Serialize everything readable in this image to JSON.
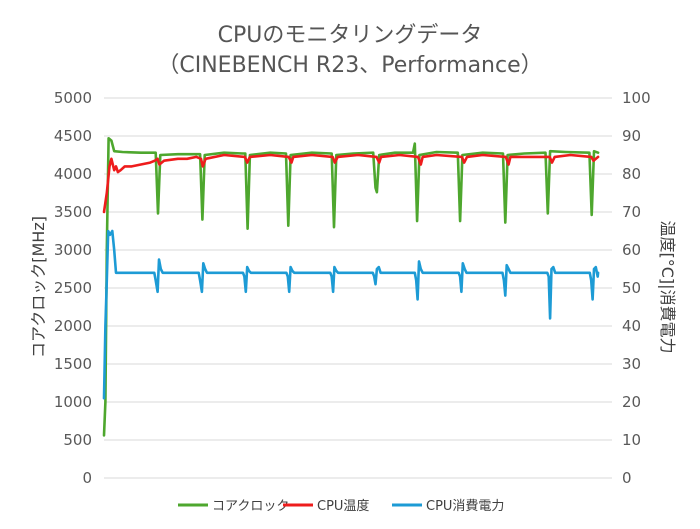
{
  "chart_data": {
    "type": "line",
    "title_line1": "CPUのモニタリングデータ",
    "title_line2": "（CINEBENCH R23、Performance）",
    "ylabel_left": "コアクロック[MHz]",
    "ylabel_right": "温度[°C]|消費電力",
    "ylim_left": [
      0,
      5000
    ],
    "ylim_right": [
      0,
      100
    ],
    "yticks_left": [
      0,
      500,
      1000,
      1500,
      2000,
      2500,
      3000,
      3500,
      4000,
      4500,
      5000
    ],
    "yticks_right": [
      0,
      10,
      20,
      30,
      40,
      50,
      60,
      70,
      80,
      90,
      100
    ],
    "grid": true,
    "legend_position": "bottom",
    "x_range": [
      0,
      110
    ],
    "series": [
      {
        "name": "コアクロック",
        "axis": "left",
        "color": "#4ea72e",
        "points": [
          [
            0,
            560
          ],
          [
            0.3,
            1000
          ],
          [
            0.6,
            3000
          ],
          [
            1,
            4470
          ],
          [
            1.6,
            4440
          ],
          [
            2.2,
            4300
          ],
          [
            4,
            4290
          ],
          [
            8,
            4280
          ],
          [
            11.2,
            4280
          ],
          [
            11.7,
            3480
          ],
          [
            12.2,
            4250
          ],
          [
            16,
            4260
          ],
          [
            20,
            4260
          ],
          [
            20.8,
            4260
          ],
          [
            21.3,
            3400
          ],
          [
            21.8,
            4250
          ],
          [
            26,
            4280
          ],
          [
            30,
            4270
          ],
          [
            30.6,
            4270
          ],
          [
            31.1,
            3280
          ],
          [
            31.6,
            4250
          ],
          [
            36,
            4280
          ],
          [
            39.4,
            4270
          ],
          [
            39.9,
            3320
          ],
          [
            40.4,
            4250
          ],
          [
            45,
            4280
          ],
          [
            49.3,
            4270
          ],
          [
            49.8,
            3300
          ],
          [
            50.3,
            4250
          ],
          [
            54,
            4270
          ],
          [
            58.3,
            4280
          ],
          [
            58.8,
            3820
          ],
          [
            59.1,
            3760
          ],
          [
            59.6,
            4250
          ],
          [
            63,
            4280
          ],
          [
            66.9,
            4280
          ],
          [
            67.3,
            4400
          ],
          [
            67.8,
            3380
          ],
          [
            68.3,
            4250
          ],
          [
            72,
            4290
          ],
          [
            76.6,
            4280
          ],
          [
            77.1,
            3380
          ],
          [
            77.6,
            4250
          ],
          [
            82,
            4280
          ],
          [
            86.4,
            4270
          ],
          [
            86.9,
            3360
          ],
          [
            87.4,
            4250
          ],
          [
            91,
            4270
          ],
          [
            95.6,
            4280
          ],
          [
            96.1,
            3480
          ],
          [
            96.6,
            4300
          ],
          [
            100,
            4290
          ],
          [
            105.1,
            4280
          ],
          [
            105.6,
            3460
          ],
          [
            106.1,
            4300
          ],
          [
            107,
            4280
          ]
        ]
      },
      {
        "name": "CPU温度",
        "axis": "right",
        "color": "#ee1c1c",
        "points": [
          [
            0,
            70
          ],
          [
            0.6,
            75
          ],
          [
            1.2,
            82
          ],
          [
            1.6,
            84
          ],
          [
            2.2,
            81
          ],
          [
            2.6,
            82
          ],
          [
            3,
            80.5
          ],
          [
            3.6,
            81
          ],
          [
            4.5,
            82
          ],
          [
            6,
            82
          ],
          [
            8,
            82.5
          ],
          [
            10,
            83
          ],
          [
            11,
            83.5
          ],
          [
            11.6,
            84
          ],
          [
            12,
            82.5
          ],
          [
            13,
            83.5
          ],
          [
            16,
            84
          ],
          [
            18,
            84
          ],
          [
            20,
            84.5
          ],
          [
            21,
            84
          ],
          [
            21.4,
            82
          ],
          [
            22,
            84
          ],
          [
            26,
            85
          ],
          [
            30.5,
            84.5
          ],
          [
            31,
            83
          ],
          [
            31.6,
            84.5
          ],
          [
            36,
            85
          ],
          [
            40,
            84.5
          ],
          [
            40.6,
            83
          ],
          [
            41,
            84.5
          ],
          [
            45,
            85
          ],
          [
            49.5,
            84.5
          ],
          [
            50,
            83
          ],
          [
            50.6,
            84.5
          ],
          [
            55,
            85
          ],
          [
            59,
            84.5
          ],
          [
            59.6,
            83
          ],
          [
            60,
            84.5
          ],
          [
            64,
            85
          ],
          [
            68,
            84.5
          ],
          [
            68.6,
            82.5
          ],
          [
            69,
            84.5
          ],
          [
            72,
            85
          ],
          [
            77.5,
            84.5
          ],
          [
            78,
            83
          ],
          [
            78.6,
            84.5
          ],
          [
            82,
            85
          ],
          [
            87,
            84.5
          ],
          [
            87.6,
            82.5
          ],
          [
            88,
            84.5
          ],
          [
            91,
            84.5
          ],
          [
            96.5,
            84.5
          ],
          [
            97,
            83
          ],
          [
            97.6,
            84.5
          ],
          [
            101,
            85
          ],
          [
            105.5,
            84.5
          ],
          [
            106,
            83.5
          ],
          [
            107,
            84.5
          ]
        ]
      },
      {
        "name": "CPU消費電力",
        "axis": "right",
        "color": "#1d9bd5",
        "points": [
          [
            0,
            21
          ],
          [
            0.3,
            40
          ],
          [
            0.6,
            52
          ],
          [
            0.9,
            65
          ],
          [
            1.3,
            64
          ],
          [
            1.8,
            65
          ],
          [
            2.2,
            60
          ],
          [
            2.6,
            54
          ],
          [
            3,
            54
          ],
          [
            6,
            54
          ],
          [
            10.9,
            54
          ],
          [
            11.2,
            52
          ],
          [
            11.6,
            49
          ],
          [
            11.9,
            57.5
          ],
          [
            12.3,
            55
          ],
          [
            12.7,
            54
          ],
          [
            16,
            54
          ],
          [
            20.5,
            54
          ],
          [
            20.8,
            52
          ],
          [
            21.2,
            49
          ],
          [
            21.5,
            56.5
          ],
          [
            21.9,
            55
          ],
          [
            22.3,
            54
          ],
          [
            26,
            54
          ],
          [
            30.1,
            54
          ],
          [
            30.4,
            53
          ],
          [
            30.7,
            49
          ],
          [
            31,
            55.5
          ],
          [
            31.4,
            54.5
          ],
          [
            31.8,
            54
          ],
          [
            36,
            54
          ],
          [
            39.5,
            54
          ],
          [
            39.8,
            53
          ],
          [
            40.1,
            49
          ],
          [
            40.4,
            55.5
          ],
          [
            40.8,
            54.5
          ],
          [
            41.2,
            54
          ],
          [
            45,
            54
          ],
          [
            49,
            54
          ],
          [
            49.3,
            53
          ],
          [
            49.6,
            49
          ],
          [
            49.9,
            55.5
          ],
          [
            50.3,
            54.5
          ],
          [
            50.7,
            54
          ],
          [
            54,
            54
          ],
          [
            58.2,
            54
          ],
          [
            58.5,
            53
          ],
          [
            58.8,
            51
          ],
          [
            59.1,
            55
          ],
          [
            59.5,
            55.5
          ],
          [
            59.9,
            54
          ],
          [
            63,
            54
          ],
          [
            67.3,
            54
          ],
          [
            67.6,
            52
          ],
          [
            67.9,
            47
          ],
          [
            68.2,
            57
          ],
          [
            68.6,
            55
          ],
          [
            69,
            54
          ],
          [
            72,
            54
          ],
          [
            76.8,
            54
          ],
          [
            77.1,
            53
          ],
          [
            77.4,
            49
          ],
          [
            77.7,
            56.5
          ],
          [
            78.1,
            55
          ],
          [
            78.5,
            54
          ],
          [
            82,
            54
          ],
          [
            86.3,
            54
          ],
          [
            86.6,
            52
          ],
          [
            86.9,
            48
          ],
          [
            87.2,
            56
          ],
          [
            87.6,
            55
          ],
          [
            88,
            54
          ],
          [
            91,
            54
          ],
          [
            96,
            54
          ],
          [
            96.3,
            53
          ],
          [
            96.6,
            42
          ],
          [
            96.9,
            55
          ],
          [
            97.3,
            55.5
          ],
          [
            97.7,
            54
          ],
          [
            100,
            54
          ],
          [
            105.2,
            54
          ],
          [
            105.5,
            52
          ],
          [
            105.8,
            47
          ],
          [
            106.1,
            55
          ],
          [
            106.5,
            55.5
          ],
          [
            106.9,
            53
          ],
          [
            107,
            54
          ]
        ]
      }
    ]
  }
}
